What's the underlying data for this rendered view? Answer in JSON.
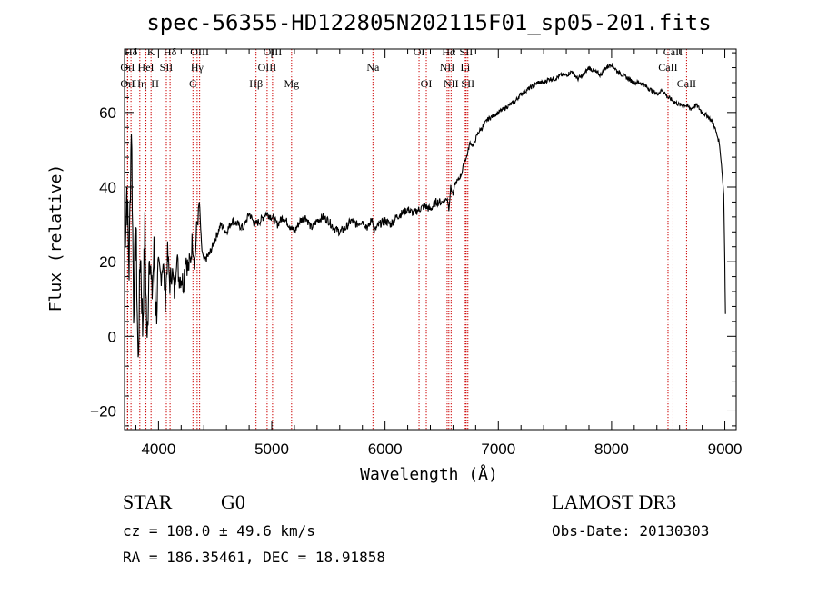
{
  "chart_data": {
    "type": "line",
    "title": "spec-56355-HD122805N202115F01_sp05-201.fits",
    "xlabel": "Wavelength (Å)",
    "ylabel": "Flux (relative)",
    "xlim": [
      3700,
      9100
    ],
    "ylim": [
      -25,
      77
    ],
    "xticks": [
      4000,
      5000,
      6000,
      7000,
      8000,
      9000
    ],
    "xtick_labels": [
      "4000",
      "5000",
      "6000",
      "7000",
      "8000",
      "9000"
    ],
    "yticks": [
      -20,
      0,
      20,
      40,
      60
    ],
    "ytick_labels": [
      "−20",
      "0",
      "20",
      "40",
      "60"
    ],
    "series": [
      {
        "name": "spectrum",
        "color": "#000000",
        "x": [
          3700,
          3720,
          3740,
          3760,
          3780,
          3800,
          3820,
          3840,
          3860,
          3880,
          3900,
          3920,
          3940,
          3960,
          3980,
          4000,
          4020,
          4040,
          4060,
          4080,
          4100,
          4120,
          4140,
          4160,
          4180,
          4200,
          4220,
          4240,
          4260,
          4280,
          4300,
          4320,
          4340,
          4360,
          4380,
          4400,
          4450,
          4500,
          4550,
          4600,
          4650,
          4700,
          4750,
          4800,
          4850,
          4900,
          4950,
          5000,
          5050,
          5100,
          5150,
          5200,
          5250,
          5300,
          5350,
          5400,
          5450,
          5500,
          5550,
          5600,
          5650,
          5700,
          5750,
          5800,
          5850,
          5890,
          5900,
          5950,
          6000,
          6050,
          6100,
          6150,
          6200,
          6250,
          6300,
          6350,
          6400,
          6450,
          6500,
          6550,
          6563,
          6580,
          6600,
          6620,
          6650,
          6680,
          6700,
          6720,
          6750,
          6780,
          6800,
          6830,
          6860,
          6900,
          6950,
          7000,
          7050,
          7100,
          7150,
          7200,
          7250,
          7300,
          7350,
          7400,
          7450,
          7500,
          7550,
          7600,
          7650,
          7700,
          7750,
          7800,
          7850,
          7900,
          7950,
          8000,
          8050,
          8100,
          8150,
          8200,
          8250,
          8300,
          8350,
          8400,
          8450,
          8500,
          8550,
          8600,
          8650,
          8700,
          8750,
          8800,
          8850,
          8900,
          8950,
          8970,
          8990,
          9000,
          9005
        ],
        "y": [
          22,
          40,
          18,
          58,
          8,
          30,
          -8,
          24,
          2,
          28,
          -4,
          26,
          10,
          22,
          6,
          18,
          16,
          20,
          10,
          22,
          14,
          18,
          12,
          22,
          16,
          16,
          14,
          22,
          18,
          20,
          26,
          20,
          30,
          36,
          24,
          20,
          22,
          26,
          30,
          28,
          31,
          30,
          29,
          33,
          30,
          31,
          33,
          32,
          30,
          32,
          30,
          28,
          31,
          32,
          29,
          31,
          32,
          31,
          29,
          28,
          29,
          31,
          30,
          31,
          29,
          32,
          28,
          30,
          31,
          30,
          32,
          33,
          34,
          33,
          34,
          35,
          34,
          36,
          36,
          37,
          34,
          40,
          38,
          41,
          42,
          44,
          47,
          48,
          52,
          51,
          53,
          55,
          56,
          58,
          59,
          60,
          61,
          62,
          63,
          65,
          66,
          67,
          68,
          68,
          69,
          69,
          70,
          70,
          71,
          69,
          70,
          72,
          71,
          70,
          72,
          73,
          71,
          70,
          69,
          68,
          68,
          67,
          66,
          65,
          66,
          64,
          63,
          62,
          62,
          61,
          62,
          60,
          59,
          57,
          52,
          46,
          38,
          20,
          6
        ]
      }
    ],
    "line_markers": [
      {
        "label": "Hδ",
        "wl": 3757,
        "row": 0
      },
      {
        "label": "OıI",
        "wl": 3727,
        "row": 1
      },
      {
        "label": "OıI",
        "wl": 3727,
        "row": 2
      },
      {
        "label": "K",
        "wl": 3934,
        "row": 0
      },
      {
        "label": "HeI",
        "wl": 3889,
        "row": 1
      },
      {
        "label": "Hη",
        "wl": 3835,
        "row": 2
      },
      {
        "label": "H",
        "wl": 3969,
        "row": 2
      },
      {
        "label": "SII",
        "wl": 4069,
        "row": 1
      },
      {
        "label": "Hδ",
        "wl": 4102,
        "row": 0
      },
      {
        "label": "OIII",
        "wl": 4363,
        "row": 0
      },
      {
        "label": "Hγ",
        "wl": 4341,
        "row": 1
      },
      {
        "label": "G",
        "wl": 4304,
        "row": 2
      },
      {
        "label": "OIII",
        "wl": 5007,
        "row": 0
      },
      {
        "label": "OIII",
        "wl": 4959,
        "row": 1
      },
      {
        "label": "Hβ",
        "wl": 4861,
        "row": 2
      },
      {
        "label": "Mg",
        "wl": 5175,
        "row": 2
      },
      {
        "label": "Na",
        "wl": 5893,
        "row": 1
      },
      {
        "label": "OI",
        "wl": 6300,
        "row": 0
      },
      {
        "label": "OI",
        "wl": 6364,
        "row": 2
      },
      {
        "label": "Hα",
        "wl": 6563,
        "row": 0
      },
      {
        "label": "SII",
        "wl": 6716,
        "row": 0
      },
      {
        "label": "NII",
        "wl": 6548,
        "row": 1
      },
      {
        "label": "Li",
        "wl": 6708,
        "row": 1
      },
      {
        "label": "NII",
        "wl": 6583,
        "row": 2
      },
      {
        "label": "SII",
        "wl": 6731,
        "row": 2
      },
      {
        "label": "CaII",
        "wl": 8542,
        "row": 0
      },
      {
        "label": "CaII",
        "wl": 8498,
        "row": 1
      },
      {
        "label": "CaII",
        "wl": 8662,
        "row": 2
      }
    ],
    "marker_color": "#cc0000"
  },
  "info": {
    "object_class": "STAR",
    "subclass": "G0",
    "survey": "LAMOST DR3",
    "cz": "cz = 108.0 ± 49.6 km/s",
    "obs_date": "Obs-Date: 20130303",
    "coords": "RA = 186.35461, DEC =  18.91858"
  }
}
